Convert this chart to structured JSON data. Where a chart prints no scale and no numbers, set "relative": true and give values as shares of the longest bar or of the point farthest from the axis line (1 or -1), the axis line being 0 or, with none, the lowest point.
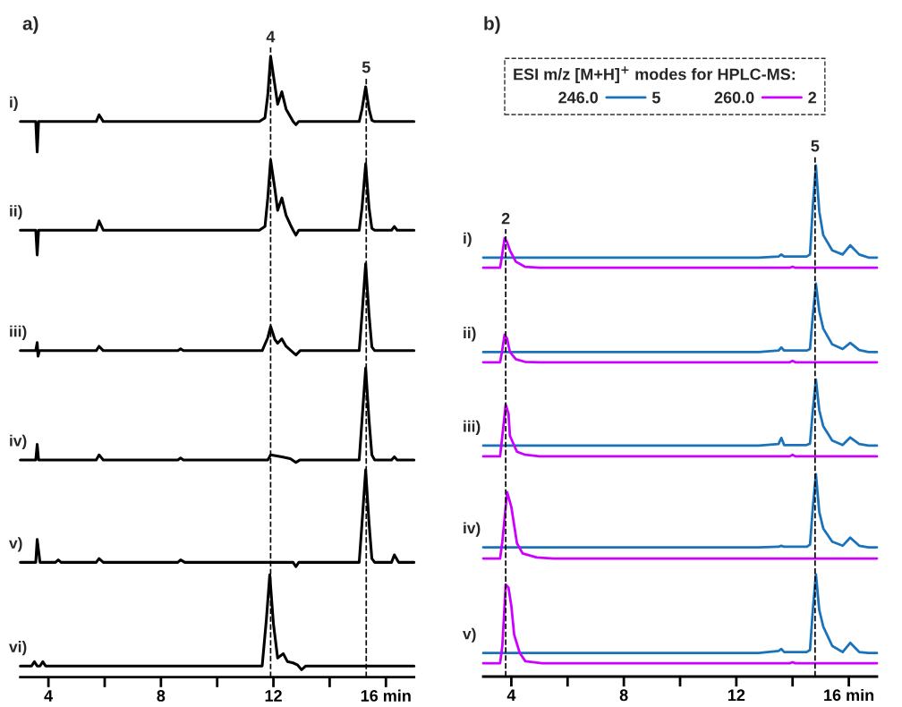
{
  "chart_data": [
    {
      "type": "line",
      "relative": true,
      "title": "a)",
      "xlim": [
        3,
        17
      ],
      "xticks": [
        4,
        {
          "value": 6,
          "label": null
        },
        8,
        {
          "value": 10,
          "label": null
        },
        12,
        {
          "value": 14,
          "label": null
        },
        {
          "value": 16,
          "label": "16 min"
        }
      ],
      "marker": "none",
      "line_style": "solid",
      "annotations": [
        {
          "text": "4",
          "x": 11.9,
          "y": 1
        },
        {
          "text": "5",
          "x": 15.3,
          "y": 0.951
        }
      ],
      "series": [
        {
          "name": "i)",
          "color": "#000000",
          "x": [
            3.0,
            3.55,
            3.6,
            3.65,
            4.9,
            5.7,
            5.8,
            5.95,
            11.5,
            11.7,
            11.8,
            11.9,
            12.05,
            12.15,
            12.3,
            12.45,
            12.6,
            12.7,
            12.8,
            12.9,
            15.05,
            15.15,
            15.28,
            15.4,
            15.5,
            15.6,
            17.0
          ],
          "values": [
            0.895,
            0.895,
            0.846,
            0.895,
            0.895,
            0.895,
            0.906,
            0.895,
            0.895,
            0.901,
            0.938,
            1,
            0.954,
            0.923,
            0.943,
            0.915,
            0.903,
            0.895,
            0.89,
            0.895,
            0.895,
            0.915,
            0.951,
            0.915,
            0.897,
            0.895,
            0.895
          ]
        },
        {
          "name": "ii)",
          "color": "#000000",
          "x": [
            3.0,
            3.55,
            3.6,
            3.65,
            5.7,
            5.8,
            5.95,
            11.5,
            11.7,
            11.8,
            11.9,
            12.05,
            12.15,
            12.3,
            12.45,
            12.6,
            12.7,
            12.8,
            12.9,
            15.05,
            15.15,
            15.28,
            15.4,
            15.5,
            15.6,
            16.2,
            16.3,
            16.4,
            17.0
          ],
          "values": [
            0.72,
            0.72,
            0.68,
            0.72,
            0.72,
            0.735,
            0.72,
            0.72,
            0.726,
            0.772,
            0.833,
            0.787,
            0.752,
            0.772,
            0.744,
            0.729,
            0.72,
            0.712,
            0.72,
            0.72,
            0.756,
            0.827,
            0.756,
            0.723,
            0.72,
            0.72,
            0.726,
            0.72,
            0.72
          ]
        },
        {
          "name": "iii)",
          "color": "#000000",
          "x": [
            3.0,
            3.55,
            3.6,
            3.63,
            3.68,
            5.7,
            5.8,
            5.95,
            8.6,
            8.7,
            8.8,
            11.6,
            11.8,
            11.9,
            12.05,
            12.15,
            12.3,
            12.45,
            12.6,
            12.8,
            12.95,
            15.05,
            15.15,
            15.28,
            15.4,
            15.5,
            15.6,
            17.0
          ],
          "values": [
            0.526,
            0.526,
            0.539,
            0.517,
            0.526,
            0.526,
            0.533,
            0.526,
            0.526,
            0.529,
            0.526,
            0.526,
            0.547,
            0.565,
            0.544,
            0.538,
            0.545,
            0.533,
            0.527,
            0.519,
            0.526,
            0.526,
            0.584,
            0.666,
            0.584,
            0.532,
            0.526,
            0.526
          ]
        },
        {
          "name": "iv)",
          "color": "#000000",
          "x": [
            3.0,
            3.55,
            3.6,
            3.65,
            5.7,
            5.8,
            5.95,
            8.6,
            8.7,
            8.8,
            11.8,
            11.9,
            12.3,
            12.6,
            12.8,
            12.95,
            15.05,
            15.15,
            15.28,
            15.4,
            15.5,
            15.6,
            16.2,
            16.3,
            16.4,
            17.0
          ],
          "values": [
            0.35,
            0.35,
            0.375,
            0.35,
            0.35,
            0.358,
            0.35,
            0.35,
            0.353,
            0.35,
            0.35,
            0.358,
            0.355,
            0.352,
            0.346,
            0.35,
            0.35,
            0.414,
            0.498,
            0.414,
            0.358,
            0.35,
            0.35,
            0.355,
            0.35,
            0.35
          ]
        },
        {
          "name": "v)",
          "color": "#000000",
          "x": [
            3.0,
            3.55,
            3.6,
            3.7,
            4.25,
            4.35,
            4.45,
            5.7,
            5.8,
            5.95,
            8.6,
            8.7,
            8.85,
            12.7,
            12.8,
            12.9,
            15.05,
            15.15,
            15.28,
            15.4,
            15.5,
            15.6,
            16.2,
            16.3,
            16.45,
            17.0
          ],
          "values": [
            0.185,
            0.185,
            0.222,
            0.185,
            0.185,
            0.189,
            0.185,
            0.185,
            0.191,
            0.185,
            0.185,
            0.189,
            0.185,
            0.185,
            0.178,
            0.185,
            0.185,
            0.248,
            0.334,
            0.248,
            0.191,
            0.185,
            0.185,
            0.197,
            0.185,
            0.185
          ]
        },
        {
          "name": "vi)",
          "color": "#000000",
          "x": [
            3.0,
            3.4,
            3.5,
            3.6,
            3.7,
            3.8,
            3.9,
            11.6,
            11.75,
            11.87,
            12.0,
            12.15,
            12.35,
            12.5,
            12.7,
            12.85,
            13.0,
            13.15,
            17.0
          ],
          "values": [
            0.018,
            0.018,
            0.025,
            0.018,
            0.018,
            0.025,
            0.018,
            0.018,
            0.093,
            0.165,
            0.086,
            0.031,
            0.038,
            0.025,
            0.023,
            0.02,
            0.012,
            0.018,
            0.018
          ]
        }
      ],
      "ref_lines": [
        {
          "axis": "x",
          "value": 11.9,
          "line_style": "dashed",
          "color": "#000000"
        },
        {
          "axis": "x",
          "value": 15.3,
          "line_style": "dashed",
          "color": "#000000"
        }
      ]
    },
    {
      "type": "line",
      "relative": true,
      "title": "b)",
      "xlim": [
        3,
        17
      ],
      "xticks": [
        4,
        {
          "value": 6,
          "label": null
        },
        8,
        {
          "value": 10,
          "label": null
        },
        12,
        {
          "value": 14,
          "label": null
        },
        {
          "value": 16,
          "label": "16 min"
        }
      ],
      "marker": "none",
      "line_style": "solid",
      "legend": "top",
      "legend_title": "ESI m/z [M+H]$^{+}$ modes for HPLC-MS:",
      "annotations": [
        "246.0",
        "260.0",
        "i)",
        "ii)",
        "iii)",
        "iv)",
        "v)",
        {
          "text": "2",
          "x": 3.8,
          "y": 0.858
        },
        {
          "text": "5",
          "x": 14.8,
          "y": 1
        }
      ],
      "series": [
        {
          "name": "5",
          "color": "#1a72bb",
          "x": [
            3.0,
            12.8,
            13.5,
            13.6,
            13.7,
            14.5,
            14.62,
            14.72,
            14.83,
            14.95,
            15.09,
            15.41,
            15.78,
            16.05,
            16.37,
            16.7,
            17.0
          ],
          "values": [
            0.82,
            0.82,
            0.822,
            0.826,
            0.822,
            0.822,
            0.826,
            0.92,
            1,
            0.91,
            0.864,
            0.834,
            0.826,
            0.844,
            0.826,
            0.82,
            0.82
          ]
        },
        {
          "name": "2",
          "color": "#cc00ff",
          "x": [
            3.0,
            3.6,
            3.66,
            3.76,
            3.85,
            3.95,
            4.16,
            4.48,
            5.0,
            13.9,
            14.0,
            14.1,
            17.0
          ],
          "values": [
            0.8,
            0.8,
            0.82,
            0.858,
            0.85,
            0.834,
            0.812,
            0.802,
            0.8,
            0.8,
            0.802,
            0.8,
            0.8
          ]
        },
        {
          "color": "#1a72bb",
          "x": [
            3.0,
            12.8,
            13.5,
            13.6,
            13.7,
            14.5,
            14.62,
            14.72,
            14.83,
            14.95,
            15.09,
            15.41,
            15.78,
            16.05,
            16.37,
            16.7,
            17.0
          ],
          "values": [
            0.635,
            0.635,
            0.638,
            0.644,
            0.638,
            0.638,
            0.641,
            0.707,
            0.769,
            0.715,
            0.681,
            0.65,
            0.641,
            0.653,
            0.639,
            0.635,
            0.635
          ]
        },
        {
          "color": "#cc00ff",
          "x": [
            3.0,
            3.6,
            3.66,
            3.76,
            3.85,
            3.95,
            4.16,
            4.48,
            5.0,
            13.9,
            14.0,
            14.1,
            17.0
          ],
          "values": [
            0.615,
            0.615,
            0.633,
            0.669,
            0.661,
            0.635,
            0.621,
            0.616,
            0.615,
            0.615,
            0.618,
            0.615,
            0.615
          ]
        },
        {
          "color": "#1a72bb",
          "x": [
            3.0,
            12.8,
            13.5,
            13.6,
            13.7,
            14.5,
            14.62,
            14.72,
            14.83,
            14.95,
            15.09,
            15.41,
            15.78,
            16.05,
            16.37,
            16.7,
            17.0
          ],
          "values": [
            0.452,
            0.452,
            0.455,
            0.467,
            0.453,
            0.453,
            0.456,
            0.521,
            0.581,
            0.521,
            0.49,
            0.462,
            0.453,
            0.468,
            0.455,
            0.452,
            0.452
          ]
        },
        {
          "color": "#cc00ff",
          "x": [
            3.0,
            3.6,
            3.66,
            3.8,
            3.9,
            3.95,
            4.2,
            4.5,
            5.0,
            13.9,
            14.0,
            14.1,
            17.0
          ],
          "values": [
            0.431,
            0.431,
            0.461,
            0.532,
            0.514,
            0.471,
            0.44,
            0.434,
            0.431,
            0.431,
            0.434,
            0.431,
            0.431
          ]
        },
        {
          "color": "#1a72bb",
          "x": [
            3.0,
            12.8,
            13.5,
            13.6,
            13.7,
            14.5,
            14.62,
            14.72,
            14.83,
            14.95,
            15.09,
            15.41,
            15.78,
            16.05,
            16.37,
            16.7,
            17.0
          ],
          "values": [
            0.253,
            0.253,
            0.254,
            0.256,
            0.254,
            0.254,
            0.258,
            0.33,
            0.396,
            0.322,
            0.29,
            0.264,
            0.256,
            0.272,
            0.256,
            0.253,
            0.253
          ]
        },
        {
          "color": "#cc00ff",
          "x": [
            3.0,
            3.6,
            3.68,
            3.85,
            4.0,
            4.2,
            4.4,
            4.9,
            5.5,
            17.0
          ],
          "values": [
            0.231,
            0.231,
            0.264,
            0.361,
            0.332,
            0.261,
            0.241,
            0.233,
            0.231,
            0.231
          ]
        },
        {
          "color": "#1a72bb",
          "x": [
            3.0,
            12.8,
            13.5,
            13.6,
            13.7,
            14.5,
            14.62,
            14.72,
            14.83,
            14.95,
            15.09,
            15.41,
            15.78,
            16.05,
            16.37,
            16.7,
            17.0
          ],
          "values": [
            0.046,
            0.046,
            0.05,
            0.054,
            0.048,
            0.048,
            0.052,
            0.13,
            0.2,
            0.13,
            0.098,
            0.06,
            0.048,
            0.066,
            0.048,
            0.046,
            0.046
          ]
        },
        {
          "color": "#cc00ff",
          "x": [
            3.0,
            3.6,
            3.68,
            3.8,
            3.9,
            4.0,
            4.1,
            4.3,
            4.5,
            5.1,
            13.9,
            14.0,
            14.1,
            17.0
          ],
          "values": [
            0.026,
            0.026,
            0.06,
            0.18,
            0.174,
            0.138,
            0.082,
            0.046,
            0.03,
            0.026,
            0.026,
            0.028,
            0.026,
            0.026
          ]
        }
      ],
      "ref_lines": [
        {
          "axis": "x",
          "value": 3.8,
          "line_style": "dashed",
          "color": "#000000"
        },
        {
          "axis": "x",
          "value": 14.8,
          "line_style": "dashed",
          "color": "#000000"
        }
      ]
    }
  ]
}
